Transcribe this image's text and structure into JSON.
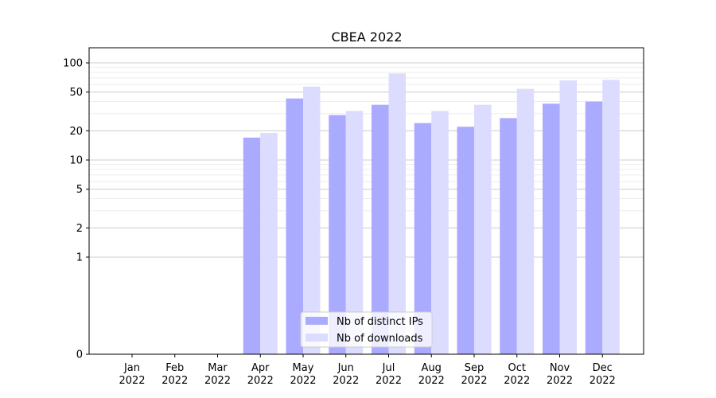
{
  "chart_data": {
    "type": "bar",
    "title": "CBEA 2022",
    "xlabel": "",
    "ylabel": "",
    "y_scale": "symlog",
    "ylim": [
      0,
      120
    ],
    "y_ticks": [
      0,
      1,
      2,
      5,
      10,
      20,
      50,
      100
    ],
    "y_tick_labels": [
      "0",
      "1",
      "2",
      "5",
      "10",
      "20",
      "50",
      "100"
    ],
    "grid": true,
    "legend_position": "bottom-center",
    "categories": [
      [
        "Jan",
        "2022"
      ],
      [
        "Feb",
        "2022"
      ],
      [
        "Mar",
        "2022"
      ],
      [
        "Apr",
        "2022"
      ],
      [
        "May",
        "2022"
      ],
      [
        "Jun",
        "2022"
      ],
      [
        "Jul",
        "2022"
      ],
      [
        "Aug",
        "2022"
      ],
      [
        "Sep",
        "2022"
      ],
      [
        "Oct",
        "2022"
      ],
      [
        "Nov",
        "2022"
      ],
      [
        "Dec",
        "2022"
      ]
    ],
    "series": [
      {
        "name": "Nb of distinct IPs",
        "color": "#aaaaff",
        "values": [
          0,
          0,
          0,
          17,
          43,
          29,
          37,
          24,
          22,
          27,
          38,
          40
        ]
      },
      {
        "name": "Nb of downloads",
        "color": "#dcdcff",
        "values": [
          0,
          0,
          0,
          19,
          57,
          32,
          78,
          32,
          37,
          54,
          66,
          67
        ]
      }
    ]
  }
}
